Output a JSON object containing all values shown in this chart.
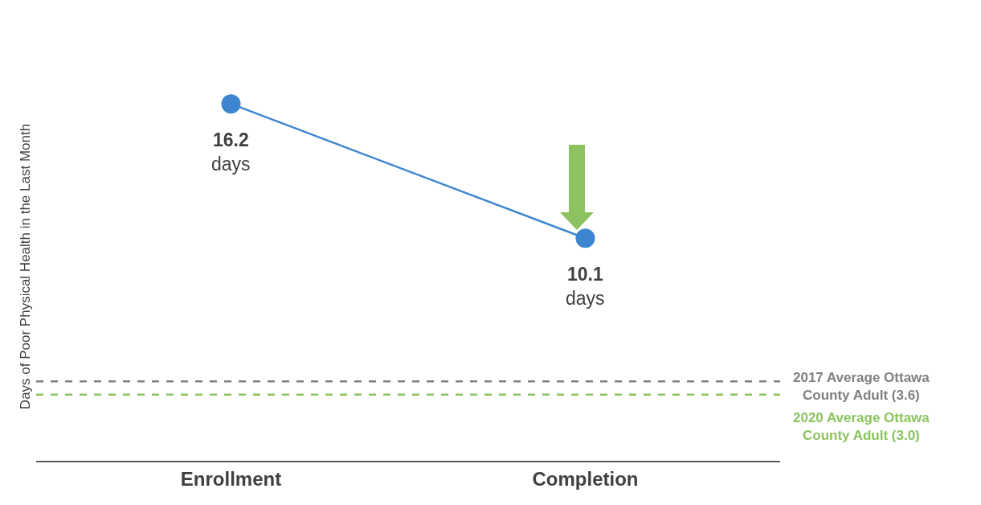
{
  "chart_data": {
    "type": "line",
    "ylabel": "Days of Poor Physical Health in the Last Month",
    "categories": [
      "Enrollment",
      "Completion"
    ],
    "series": [
      {
        "color": "#3d86cf",
        "values": [
          16.2,
          10.1
        ],
        "value_labels": [
          "16.2\ndays",
          "10.1\ndays"
        ]
      }
    ],
    "tick_labels": "x",
    "grid": false,
    "marker": "circle",
    "line_style": "solid",
    "ref_lines": [
      {
        "axis": "y",
        "value": 3.6,
        "label": "2017 Average Ottawa\nCounty Adult (3.6)",
        "color": "#7f7f7f",
        "line_style": "dashed"
      },
      {
        "axis": "y",
        "value": 3.0,
        "label": "2020 Average Ottawa\nCounty Adult (3.0)",
        "color": "#8cc360",
        "line_style": "dashed"
      }
    ]
  }
}
